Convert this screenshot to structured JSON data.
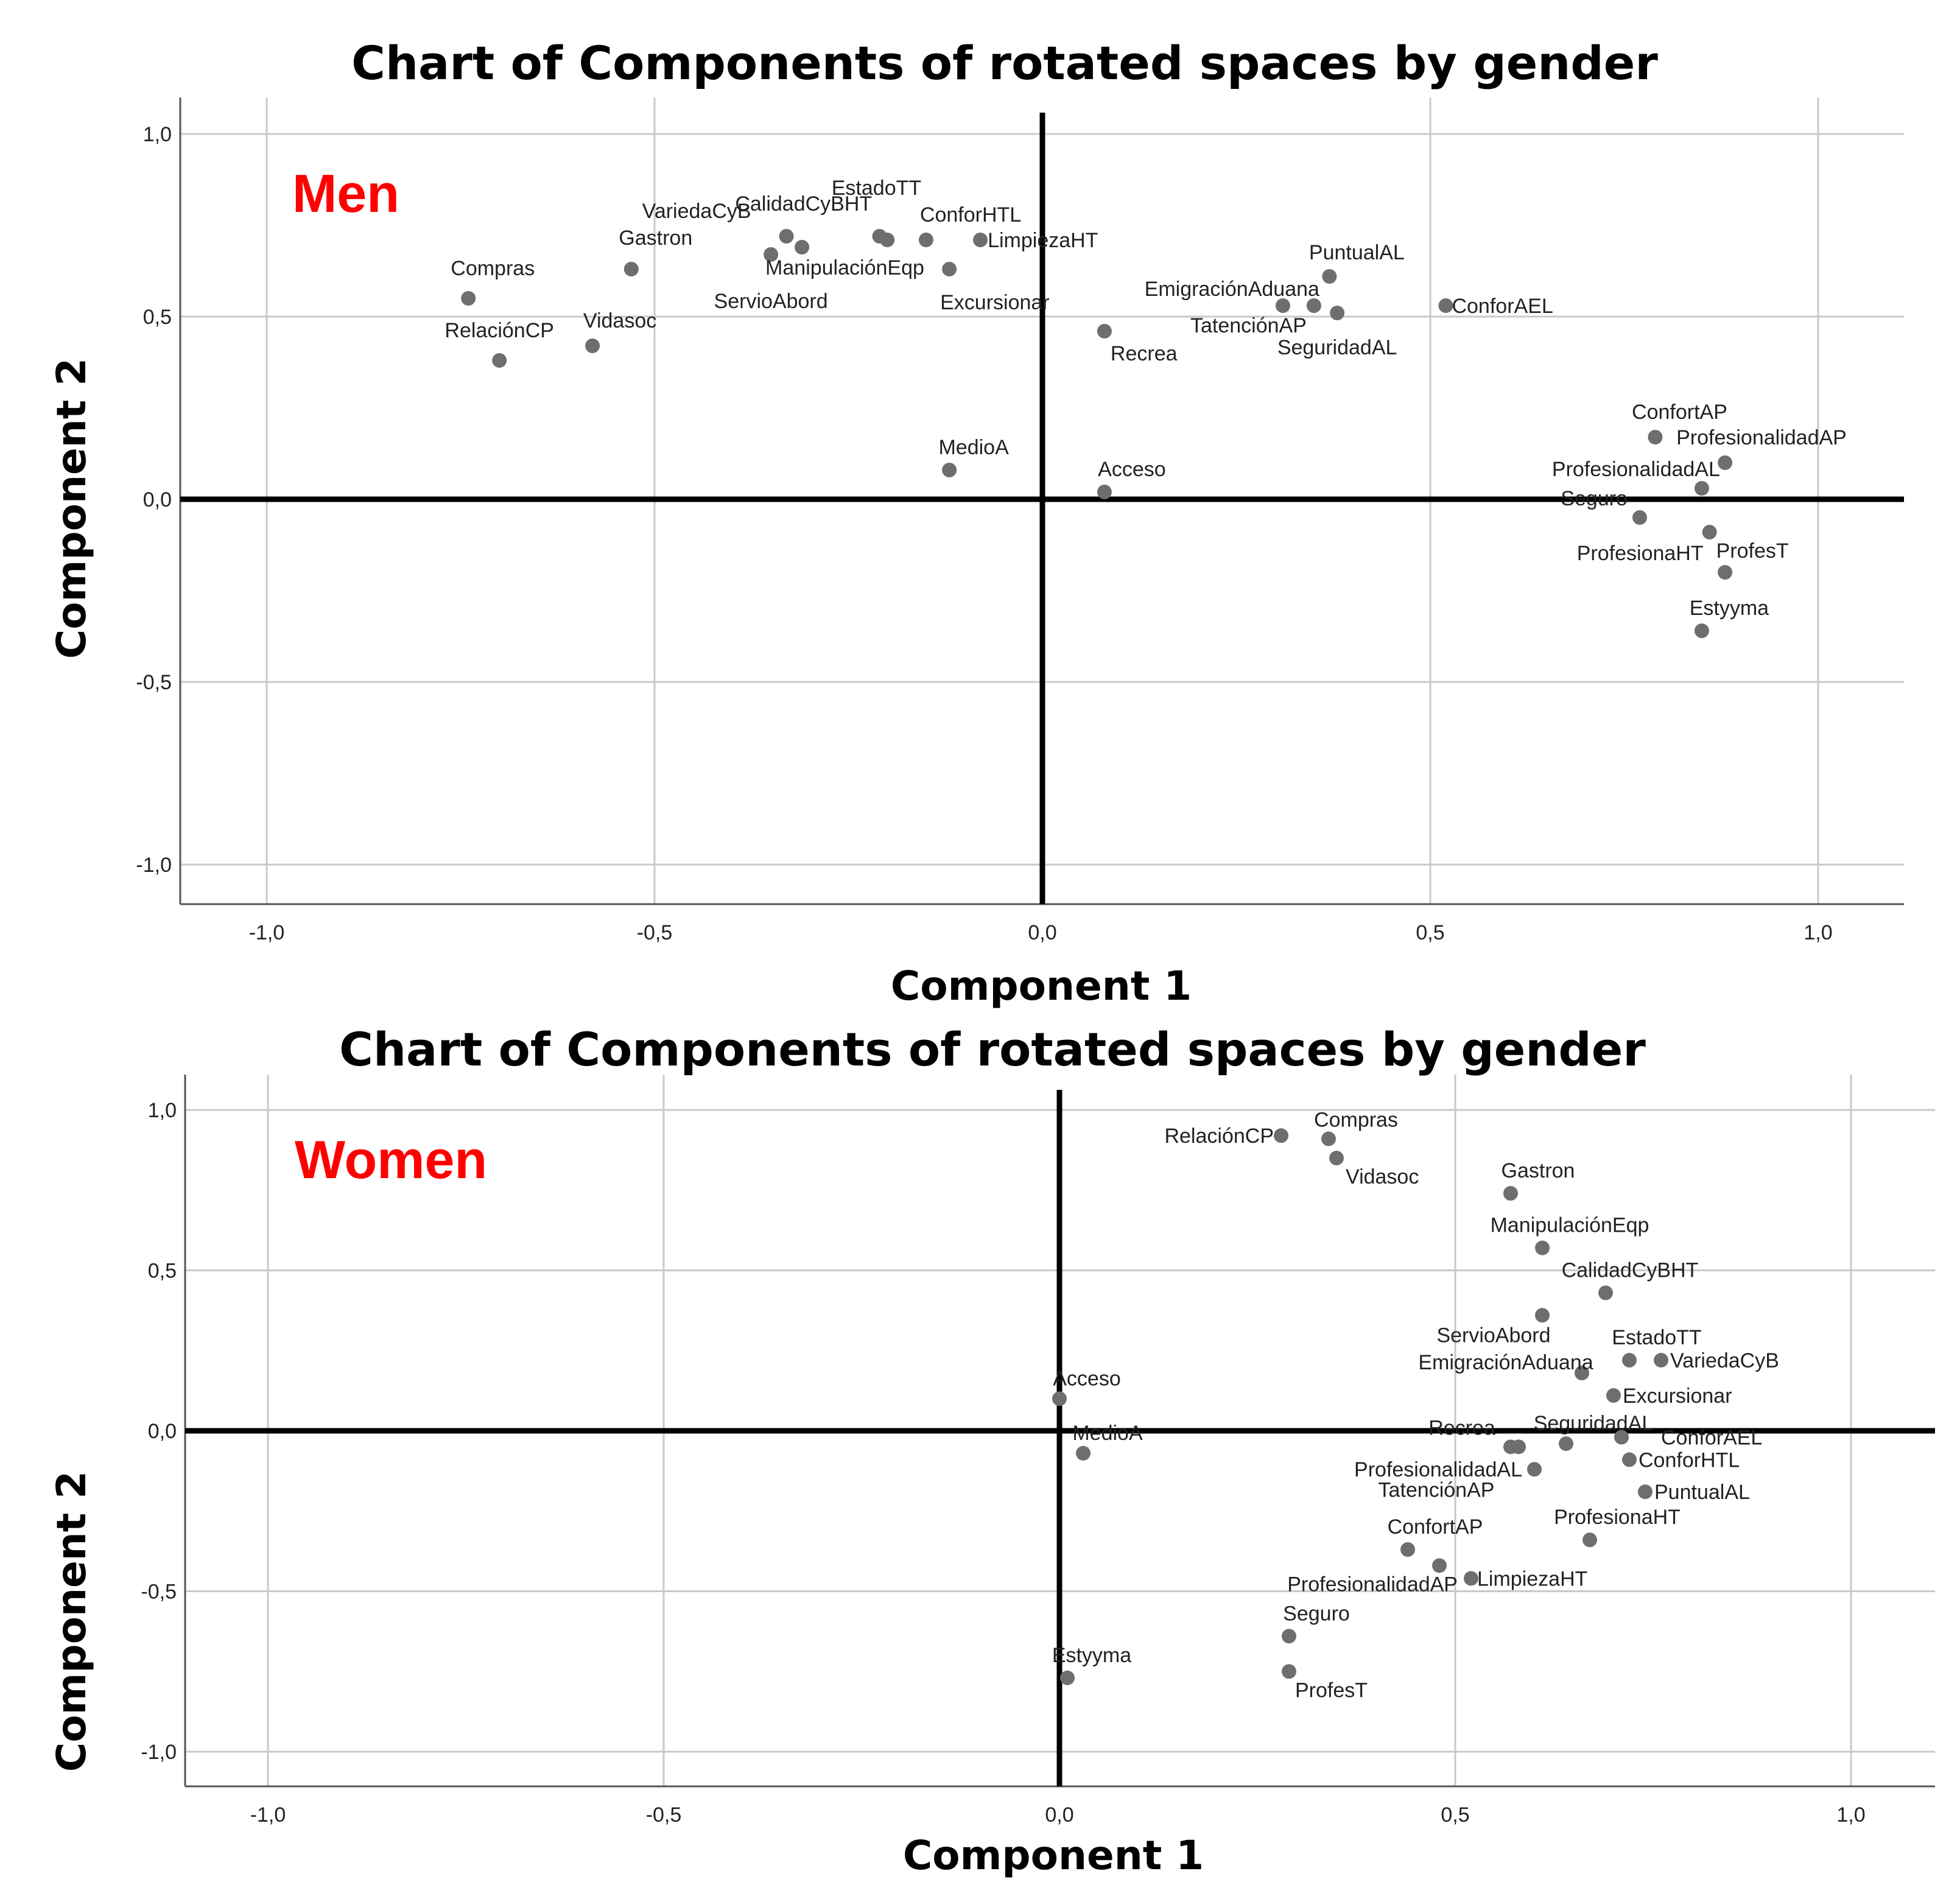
{
  "chart_data": [
    {
      "type": "scatter",
      "title": "Chart of Components of rotated spaces by gender",
      "group_label": "Men",
      "group_label_color": "#ff0000",
      "xlabel": "Component 1",
      "ylabel": "Component 2",
      "xlim": [
        -1.1,
        1.1
      ],
      "ylim": [
        -1.1,
        1.1
      ],
      "xticks": [
        -1.0,
        -0.5,
        0.0,
        0.5,
        1.0
      ],
      "yticks": [
        1.0,
        0.5,
        0.0,
        -0.5,
        -1.0
      ],
      "xtick_labels": [
        "-1,0",
        "-0,5",
        "0,0",
        "0,5",
        "1,0"
      ],
      "ytick_labels": [
        "1,0",
        "0,5",
        "0,0",
        "-0,5",
        "-1,0"
      ],
      "grid": true,
      "points": [
        {
          "label": "EstadoTT",
          "x": -0.21,
          "y": 0.72
        },
        {
          "label": "CalidadCyBHT",
          "x": -0.2,
          "y": 0.71
        },
        {
          "label": "VariedaCyB",
          "x": -0.33,
          "y": 0.72
        },
        {
          "label": "Gastron",
          "x": -0.53,
          "y": 0.63
        },
        {
          "label": "Compras",
          "x": -0.74,
          "y": 0.55
        },
        {
          "label": "RelaciónCP",
          "x": -0.7,
          "y": 0.38
        },
        {
          "label": "Vidasoc",
          "x": -0.58,
          "y": 0.42
        },
        {
          "label": "ServioAbord",
          "x": -0.35,
          "y": 0.67
        },
        {
          "label": "ManipulaciónEqp",
          "x": -0.31,
          "y": 0.69
        },
        {
          "label": "ConforHTL",
          "x": -0.15,
          "y": 0.71
        },
        {
          "label": "LimpiezaHT",
          "x": -0.08,
          "y": 0.71
        },
        {
          "label": "Excursionar",
          "x": -0.12,
          "y": 0.63
        },
        {
          "label": "MedioA",
          "x": -0.12,
          "y": 0.08
        },
        {
          "label": "Acceso",
          "x": 0.08,
          "y": 0.02
        },
        {
          "label": "Recrea",
          "x": 0.08,
          "y": 0.46
        },
        {
          "label": "EmigraciónAduana",
          "x": 0.31,
          "y": 0.53
        },
        {
          "label": "TatenciónAP",
          "x": 0.35,
          "y": 0.53
        },
        {
          "label": "SeguridadAL",
          "x": 0.38,
          "y": 0.51
        },
        {
          "label": "PuntualAL",
          "x": 0.37,
          "y": 0.61
        },
        {
          "label": "ConforAEL",
          "x": 0.52,
          "y": 0.53
        },
        {
          "label": "ConfortAP",
          "x": 0.79,
          "y": 0.17
        },
        {
          "label": "ProfesionalidadAP",
          "x": 0.88,
          "y": 0.1
        },
        {
          "label": "ProfesionalidadAL",
          "x": 0.85,
          "y": 0.03
        },
        {
          "label": "Seguro",
          "x": 0.77,
          "y": -0.05
        },
        {
          "label": "ProfesionaHT",
          "x": 0.86,
          "y": -0.09
        },
        {
          "label": "ProfesT",
          "x": 0.88,
          "y": -0.2
        },
        {
          "label": "Estyyma",
          "x": 0.85,
          "y": -0.36
        }
      ]
    },
    {
      "type": "scatter",
      "title": "Chart of Components of rotated spaces by gender",
      "group_label": "Women",
      "group_label_color": "#ff0000",
      "xlabel": "Component 1",
      "ylabel": "Component 2",
      "xlim": [
        -1.1,
        1.1
      ],
      "ylim": [
        -1.1,
        1.1
      ],
      "xticks": [
        -1.0,
        -0.5,
        0.0,
        0.5,
        1.0
      ],
      "yticks": [
        1.0,
        0.5,
        0.0,
        -0.5,
        -1.0
      ],
      "xtick_labels": [
        "-1,0",
        "-0,5",
        "0,0",
        "0,5",
        "1,0"
      ],
      "ytick_labels": [
        "1,0",
        "0,5",
        "0,0",
        "-0,5",
        "-1,0"
      ],
      "grid": true,
      "points": [
        {
          "label": "RelaciónCP",
          "x": 0.28,
          "y": 0.92
        },
        {
          "label": "Compras",
          "x": 0.34,
          "y": 0.91
        },
        {
          "label": "Vidasoc",
          "x": 0.35,
          "y": 0.85
        },
        {
          "label": "Gastron",
          "x": 0.57,
          "y": 0.74
        },
        {
          "label": "ManipulaciónEqp",
          "x": 0.61,
          "y": 0.57
        },
        {
          "label": "CalidadCyBHT",
          "x": 0.69,
          "y": 0.43
        },
        {
          "label": "ServioAbord",
          "x": 0.61,
          "y": 0.36
        },
        {
          "label": "EstadoTT",
          "x": 0.72,
          "y": 0.22
        },
        {
          "label": "VariedaCyB",
          "x": 0.76,
          "y": 0.22
        },
        {
          "label": "EmigraciónAduana",
          "x": 0.66,
          "y": 0.18
        },
        {
          "label": "Excursionar",
          "x": 0.7,
          "y": 0.11
        },
        {
          "label": "Acceso",
          "x": 0.0,
          "y": 0.1
        },
        {
          "label": "MedioA",
          "x": 0.03,
          "y": -0.07
        },
        {
          "label": "Recrea",
          "x": 0.57,
          "y": -0.05
        },
        {
          "label": "SeguridadAL",
          "x": 0.64,
          "y": -0.04
        },
        {
          "label": "ConforAEL",
          "x": 0.71,
          "y": -0.02
        },
        {
          "label": "ConforHTL",
          "x": 0.72,
          "y": -0.09
        },
        {
          "label": "PuntualAL",
          "x": 0.74,
          "y": -0.19
        },
        {
          "label": "ProfesionalidadAL",
          "x": 0.6,
          "y": -0.12
        },
        {
          "label": "TatenciónAP",
          "x": 0.58,
          "y": -0.05
        },
        {
          "label": "ProfesionaHT",
          "x": 0.67,
          "y": -0.34
        },
        {
          "label": "ConfortAP",
          "x": 0.44,
          "y": -0.37
        },
        {
          "label": "ProfesionalidadAP",
          "x": 0.48,
          "y": -0.42
        },
        {
          "label": "LimpiezaHT",
          "x": 0.52,
          "y": -0.46
        },
        {
          "label": "Seguro",
          "x": 0.29,
          "y": -0.64
        },
        {
          "label": "ProfesT",
          "x": 0.29,
          "y": -0.75
        },
        {
          "label": "Estyyma",
          "x": 0.01,
          "y": -0.77
        }
      ]
    }
  ]
}
